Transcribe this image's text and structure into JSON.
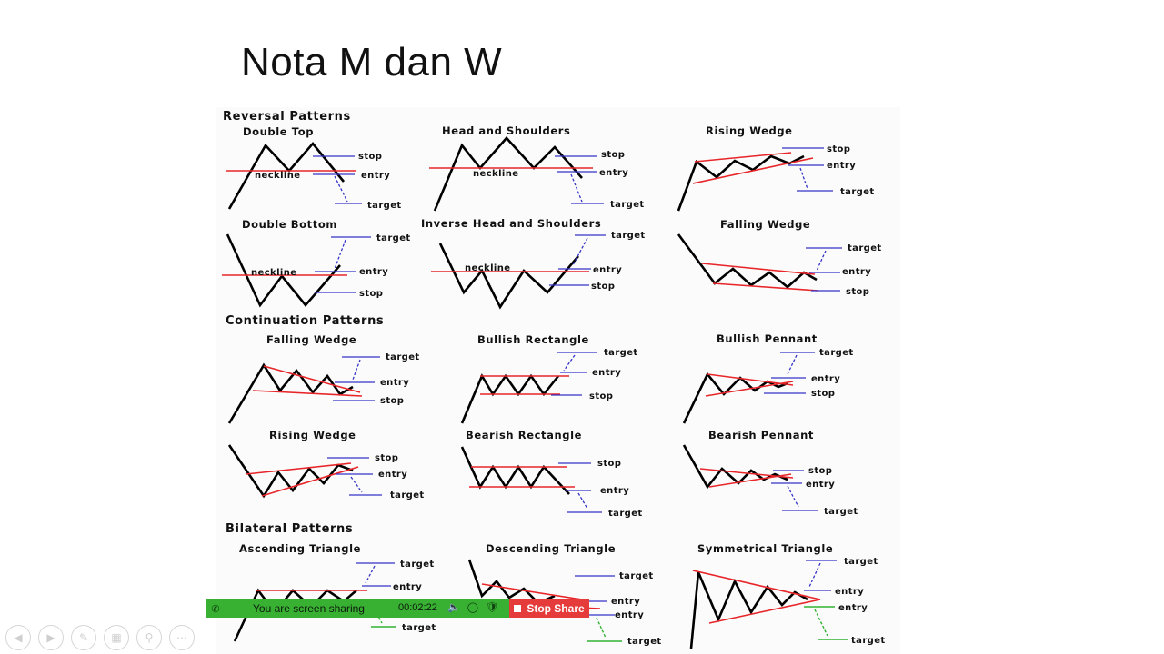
{
  "slide": {
    "title": "Nota M dan W"
  },
  "sections": {
    "reversal": "Reversal Patterns",
    "continuation": "Continuation Patterns",
    "bilateral": "Bilateral Patterns"
  },
  "patterns": {
    "double_top": "Double Top",
    "head_shoulders": "Head and Shoulders",
    "rising_wedge_rev": "Rising Wedge",
    "double_bottom": "Double Bottom",
    "inverse_hs": "Inverse Head and Shoulders",
    "falling_wedge_rev": "Falling Wedge",
    "falling_wedge_cont": "Falling Wedge",
    "bullish_rectangle": "Bullish Rectangle",
    "bullish_pennant": "Bullish Pennant",
    "rising_wedge_cont": "Rising Wedge",
    "bearish_rectangle": "Bearish Rectangle",
    "bearish_pennant": "Bearish Pennant",
    "ascending_triangle": "Ascending Triangle",
    "descending_triangle": "Descending Triangle",
    "symmetrical_triangle": "Symmetrical Triangle"
  },
  "labels": {
    "stop": "stop",
    "entry": "entry",
    "target": "target",
    "neckline": "neckline"
  },
  "share_bar": {
    "status": "You are screen sharing",
    "timer": "00:02:22",
    "stop_label": "Stop Share",
    "bar_color": "#38b032",
    "stop_color": "#e53b3b"
  },
  "toolbar": {
    "buttons": [
      "previous",
      "next",
      "pen",
      "slides",
      "zoom",
      "more"
    ]
  }
}
